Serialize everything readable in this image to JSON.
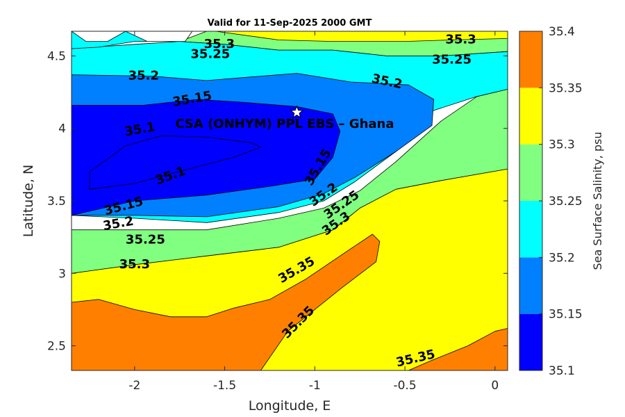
{
  "chart_data": {
    "type": "contour",
    "title": "Valid for 11-Sep-2025 2000 GMT",
    "xlabel": "Longitude, E",
    "ylabel": "Latitude, N",
    "xlim": [
      -2.35,
      0.07
    ],
    "ylim": [
      2.33,
      4.67
    ],
    "xticks": [
      -2,
      -1.5,
      -1,
      -0.5,
      0
    ],
    "xtick_labels": [
      "-2",
      "-1.5",
      "-1",
      "-0.5",
      "0"
    ],
    "yticks": [
      2.5,
      3,
      3.5,
      4,
      4.5
    ],
    "ytick_labels": [
      "2.5",
      "3",
      "3.5",
      "4",
      "4.5"
    ],
    "colorbar": {
      "label": "Sea Surface Salinity, psu",
      "levels": [
        35.1,
        35.15,
        35.2,
        35.25,
        35.3,
        35.35,
        35.4
      ],
      "level_labels": [
        "35.1",
        "35.15",
        "35.2",
        "35.25",
        "35.3",
        "35.35",
        "35.4"
      ],
      "colors": [
        "#0000ff",
        "#0080ff",
        "#00ffff",
        "#80ff80",
        "#ffff00",
        "#ff8000"
      ]
    },
    "site": {
      "label": "CSA (ONHYM) PPL EBS  – Ghana",
      "lon": -1.1,
      "lat": 4.11,
      "marker": "star"
    },
    "fill_regions": [
      {
        "level": 35.3,
        "color": "#ffff00",
        "points": [
          [
            -2.35,
            3.0
          ],
          [
            -2.0,
            3.06
          ],
          [
            -1.6,
            3.12
          ],
          [
            -1.2,
            3.18
          ],
          [
            -0.9,
            3.3
          ],
          [
            -0.75,
            3.45
          ],
          [
            -0.55,
            3.58
          ],
          [
            -0.3,
            3.64
          ],
          [
            0.07,
            3.72
          ],
          [
            0.07,
            2.33
          ],
          [
            -2.35,
            2.33
          ]
        ]
      },
      {
        "level": 35.35,
        "color": "#ff8000",
        "points": [
          [
            -2.35,
            2.33
          ],
          [
            -2.35,
            2.8
          ],
          [
            -2.2,
            2.82
          ],
          [
            -2.0,
            2.75
          ],
          [
            -1.8,
            2.7
          ],
          [
            -1.6,
            2.7
          ],
          [
            -1.45,
            2.76
          ],
          [
            -1.25,
            2.82
          ],
          [
            -1.05,
            2.96
          ],
          [
            -0.8,
            3.17
          ],
          [
            -0.68,
            3.27
          ],
          [
            -0.64,
            3.22
          ],
          [
            -0.66,
            3.08
          ],
          [
            -0.85,
            2.9
          ],
          [
            -1.15,
            2.6
          ],
          [
            -1.3,
            2.33
          ]
        ]
      },
      {
        "level": 35.35,
        "color": "#ff8000",
        "points": [
          [
            -0.48,
            2.33
          ],
          [
            -0.35,
            2.4
          ],
          [
            -0.15,
            2.5
          ],
          [
            0.0,
            2.6
          ],
          [
            0.07,
            2.62
          ],
          [
            0.07,
            2.33
          ]
        ]
      },
      {
        "level": 35.25,
        "color": "#80ff80",
        "points": [
          [
            -2.35,
            3.3
          ],
          [
            -2.0,
            3.3
          ],
          [
            -1.6,
            3.3
          ],
          [
            -1.2,
            3.38
          ],
          [
            -0.95,
            3.45
          ],
          [
            -0.75,
            3.57
          ],
          [
            -0.55,
            3.77
          ],
          [
            -0.3,
            4.05
          ],
          [
            -0.1,
            4.22
          ],
          [
            0.07,
            4.27
          ],
          [
            0.07,
            3.72
          ],
          [
            -0.3,
            3.64
          ],
          [
            -0.55,
            3.58
          ],
          [
            -0.75,
            3.45
          ],
          [
            -0.9,
            3.3
          ],
          [
            -1.2,
            3.18
          ],
          [
            -1.6,
            3.12
          ],
          [
            -2.0,
            3.06
          ],
          [
            -2.35,
            3.0
          ]
        ]
      },
      {
        "level": 35.25,
        "color": "#80ff80",
        "points": [
          [
            -1.75,
            4.6
          ],
          [
            -1.5,
            4.58
          ],
          [
            -1.2,
            4.54
          ],
          [
            -0.9,
            4.54
          ],
          [
            -0.6,
            4.5
          ],
          [
            -0.3,
            4.5
          ],
          [
            0.07,
            4.53
          ],
          [
            0.07,
            4.67
          ],
          [
            -1.6,
            4.67
          ]
        ]
      },
      {
        "level": 35.3,
        "color": "#ffff00",
        "points": [
          [
            -1.55,
            4.67
          ],
          [
            -1.2,
            4.61
          ],
          [
            -0.9,
            4.6
          ],
          [
            -0.5,
            4.6
          ],
          [
            -0.25,
            4.61
          ],
          [
            0.07,
            4.62
          ],
          [
            0.07,
            4.67
          ]
        ]
      },
      {
        "level": 35.2,
        "color": "#00ffff",
        "points": [
          [
            -2.35,
            3.4
          ],
          [
            -2.0,
            3.38
          ],
          [
            -1.6,
            3.35
          ],
          [
            -1.2,
            3.42
          ],
          [
            -0.95,
            3.5
          ],
          [
            -0.78,
            3.63
          ],
          [
            -0.55,
            3.84
          ],
          [
            -0.35,
            4.12
          ],
          [
            -0.1,
            4.22
          ],
          [
            0.07,
            4.27
          ],
          [
            0.07,
            4.53
          ],
          [
            -0.3,
            4.5
          ],
          [
            -0.6,
            4.5
          ],
          [
            -0.9,
            4.54
          ],
          [
            -1.2,
            4.54
          ],
          [
            -1.5,
            4.58
          ],
          [
            -1.75,
            4.6
          ],
          [
            -2.0,
            4.58
          ],
          [
            -2.35,
            4.55
          ]
        ]
      },
      {
        "level": 35.15,
        "color": "#0080ff",
        "points": [
          [
            -2.35,
            3.4
          ],
          [
            -2.0,
            3.4
          ],
          [
            -1.6,
            3.39
          ],
          [
            -1.2,
            3.46
          ],
          [
            -0.95,
            3.55
          ],
          [
            -0.78,
            3.66
          ],
          [
            -0.55,
            3.84
          ],
          [
            -0.35,
            4.02
          ],
          [
            -0.34,
            4.2
          ],
          [
            -0.48,
            4.3
          ],
          [
            -0.8,
            4.32
          ],
          [
            -1.1,
            4.38
          ],
          [
            -1.4,
            4.35
          ],
          [
            -1.6,
            4.33
          ],
          [
            -1.9,
            4.36
          ],
          [
            -2.35,
            4.37
          ]
        ]
      },
      {
        "level": 35.1,
        "color": "#0000ff",
        "points": [
          [
            -2.35,
            3.4
          ],
          [
            -2.0,
            3.5
          ],
          [
            -1.6,
            3.54
          ],
          [
            -1.25,
            3.6
          ],
          [
            -1.0,
            3.65
          ],
          [
            -0.9,
            3.8
          ],
          [
            -0.86,
            3.98
          ],
          [
            -0.9,
            4.1
          ],
          [
            -1.1,
            4.15
          ],
          [
            -1.4,
            4.18
          ],
          [
            -1.65,
            4.2
          ],
          [
            -1.95,
            4.16
          ],
          [
            -2.35,
            4.16
          ]
        ]
      },
      {
        "level": 35.1,
        "color": "#0000ff",
        "points": [
          [
            -2.25,
            3.58
          ],
          [
            -2.0,
            3.62
          ],
          [
            -1.7,
            3.72
          ],
          [
            -1.45,
            3.8
          ],
          [
            -1.3,
            3.87
          ],
          [
            -1.35,
            3.9
          ],
          [
            -1.6,
            3.94
          ],
          [
            -1.85,
            3.95
          ],
          [
            -2.05,
            3.88
          ],
          [
            -2.25,
            3.7
          ]
        ]
      },
      {
        "level": 35.2,
        "color": "#00ffff",
        "points": [
          [
            -2.35,
            4.55
          ],
          [
            -2.2,
            4.56
          ],
          [
            -2.0,
            4.6
          ],
          [
            -1.8,
            4.6
          ],
          [
            -1.7,
            4.67
          ],
          [
            -2.35,
            4.67
          ]
        ]
      },
      {
        "level": 35.15,
        "color": "#ffffff",
        "points": [
          [
            -2.35,
            4.67
          ],
          [
            -2.27,
            4.6
          ],
          [
            -2.15,
            4.6
          ],
          [
            -2.05,
            4.67
          ],
          [
            -1.93,
            4.6
          ],
          [
            -1.72,
            4.6
          ],
          [
            -1.68,
            4.67
          ]
        ]
      }
    ],
    "contour_labels": [
      {
        "text": "35.3",
        "lon": -1.53,
        "lat": 4.58,
        "angle": 0
      },
      {
        "text": "35.25",
        "lon": -1.58,
        "lat": 4.51,
        "angle": 0
      },
      {
        "text": "35.3",
        "lon": -0.19,
        "lat": 4.61,
        "angle": 0
      },
      {
        "text": "35.25",
        "lon": -0.24,
        "lat": 4.47,
        "angle": 0
      },
      {
        "text": "35.2",
        "lon": -1.95,
        "lat": 4.36,
        "angle": 0
      },
      {
        "text": "35.2",
        "lon": -0.6,
        "lat": 4.32,
        "angle": 12
      },
      {
        "text": "35.15",
        "lon": -1.68,
        "lat": 4.2,
        "angle": -10
      },
      {
        "text": "35.1",
        "lon": -1.97,
        "lat": 3.99,
        "angle": -10
      },
      {
        "text": "35.1",
        "lon": -1.8,
        "lat": 3.67,
        "angle": -20
      },
      {
        "text": "35.15",
        "lon": -0.98,
        "lat": 3.73,
        "angle": -60
      },
      {
        "text": "35.15",
        "lon": -2.06,
        "lat": 3.46,
        "angle": -15
      },
      {
        "text": "35.2",
        "lon": -2.09,
        "lat": 3.34,
        "angle": -10
      },
      {
        "text": "35.25",
        "lon": -1.94,
        "lat": 3.23,
        "angle": 0
      },
      {
        "text": "35.3",
        "lon": -2.0,
        "lat": 3.06,
        "angle": 0
      },
      {
        "text": "35.2",
        "lon": -0.95,
        "lat": 3.54,
        "angle": -35
      },
      {
        "text": "35.25",
        "lon": -0.85,
        "lat": 3.47,
        "angle": -35
      },
      {
        "text": "35.3",
        "lon": -0.88,
        "lat": 3.34,
        "angle": -35
      },
      {
        "text": "35.35",
        "lon": -1.1,
        "lat": 3.02,
        "angle": -30
      },
      {
        "text": "35.35",
        "lon": -1.09,
        "lat": 2.66,
        "angle": -45
      },
      {
        "text": "35.35",
        "lon": -0.44,
        "lat": 2.41,
        "angle": -13
      }
    ]
  }
}
